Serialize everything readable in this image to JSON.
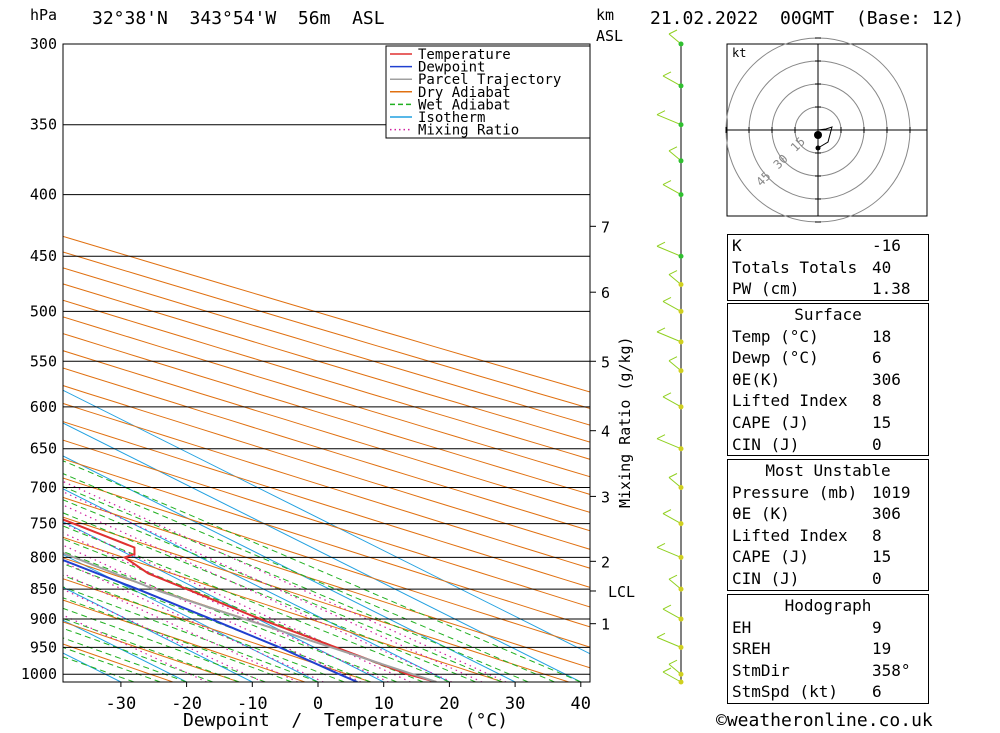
{
  "header": {
    "location": "32°38'N  343°54'W  56m  ASL",
    "datetime": "21.02.2022  00GMT  (Base: 12)"
  },
  "axis_labels": {
    "pressure_unit": "hPa",
    "height_unit": "km",
    "height_ref": "ASL",
    "x_label": "Dewpoint  /  Temperature  (°C)",
    "mixing_label": "Mixing Ratio (g/kg)",
    "kt": "kt",
    "lcl": "LCL"
  },
  "copyright": "©weatheronline.co.uk",
  "legend": [
    {
      "label": "Temperature",
      "color": "#e03030",
      "style": "solid"
    },
    {
      "label": "Dewpoint",
      "color": "#2040d0",
      "style": "solid"
    },
    {
      "label": "Parcel Trajectory",
      "color": "#a0a0a0",
      "style": "solid"
    },
    {
      "label": "Dry Adiabat",
      "color": "#e07010",
      "style": "solid"
    },
    {
      "label": "Wet Adiabat",
      "color": "#20b020",
      "style": "dashed"
    },
    {
      "label": "Isotherm",
      "color": "#20a0e0",
      "style": "solid"
    },
    {
      "label": "Mixing Ratio",
      "color": "#d020a0",
      "style": "dotted"
    }
  ],
  "chart_data": {
    "type": "line",
    "x_ticks": [
      -30,
      -20,
      -10,
      0,
      10,
      20,
      30,
      40
    ],
    "pressure_levels": [
      300,
      350,
      400,
      450,
      500,
      550,
      600,
      650,
      700,
      750,
      800,
      850,
      900,
      950,
      1000
    ],
    "height_ticks": [
      {
        "label": "7",
        "p": 425
      },
      {
        "label": "6",
        "p": 482
      },
      {
        "label": "5",
        "p": 550
      },
      {
        "label": "4",
        "p": 628
      },
      {
        "label": "3",
        "p": 712
      },
      {
        "label": "2",
        "p": 806
      },
      {
        "label": "1",
        "p": 908
      }
    ],
    "lcl_p": 853,
    "mixing_ratio_labels": [
      "1",
      "2",
      "3",
      "4",
      "6",
      "8",
      "10",
      "15",
      "20",
      "25"
    ],
    "series": [
      {
        "name": "Temperature",
        "points": [
          {
            "p": 1015,
            "t": 18
          },
          {
            "p": 1000,
            "t": 16
          },
          {
            "p": 950,
            "t": 13.3
          },
          {
            "p": 900,
            "t": 10.4
          },
          {
            "p": 850,
            "t": 8.3
          },
          {
            "p": 825,
            "t": 7.2
          },
          {
            "p": 800,
            "t": 8.5
          },
          {
            "p": 795,
            "t": 11
          },
          {
            "p": 785,
            "t": 13
          },
          {
            "p": 750,
            "t": 11
          },
          {
            "p": 700,
            "t": 7.9
          },
          {
            "p": 650,
            "t": 3.5
          },
          {
            "p": 600,
            "t": -1.1
          },
          {
            "p": 580,
            "t": -3.6
          },
          {
            "p": 550,
            "t": -4.7
          },
          {
            "p": 500,
            "t": -7.1
          },
          {
            "p": 450,
            "t": -12.5
          },
          {
            "p": 400,
            "t": -20
          },
          {
            "p": 385,
            "t": -22
          },
          {
            "p": 380,
            "t": -21
          },
          {
            "p": 300,
            "t": -34
          }
        ]
      },
      {
        "name": "Dewpoint",
        "points": [
          {
            "p": 1015,
            "t": 6
          },
          {
            "p": 1000,
            "t": 5.6
          },
          {
            "p": 950,
            "t": 4.7
          },
          {
            "p": 900,
            "t": 2.9
          },
          {
            "p": 850,
            "t": 0.8
          },
          {
            "p": 800,
            "t": -1.9
          },
          {
            "p": 798,
            "t": -29
          },
          {
            "p": 785,
            "t": -33
          },
          {
            "p": 700,
            "t": -46
          },
          {
            "p": 650,
            "t": -58
          },
          {
            "p": 600,
            "t": -49
          },
          {
            "p": 590,
            "t": -49
          },
          {
            "p": 588,
            "t": -29
          },
          {
            "p": 570,
            "t": -25
          },
          {
            "p": 550,
            "t": -27
          },
          {
            "p": 520,
            "t": -38
          },
          {
            "p": 500,
            "t": -31
          },
          {
            "p": 480,
            "t": -30
          },
          {
            "p": 470,
            "t": -35
          },
          {
            "p": 460,
            "t": -32
          },
          {
            "p": 445,
            "t": -36
          },
          {
            "p": 410,
            "t": -33
          },
          {
            "p": 400,
            "t": -34
          },
          {
            "p": 385,
            "t": -40
          },
          {
            "p": 380,
            "t": -58
          },
          {
            "p": 300,
            "t": -57
          }
        ]
      },
      {
        "name": "Parcel Trajectory",
        "points": [
          {
            "p": 1015,
            "t": 18
          },
          {
            "p": 950,
            "t": 12.6
          },
          {
            "p": 900,
            "t": 8
          },
          {
            "p": 853,
            "t": 3.5
          },
          {
            "p": 800,
            "t": 0.8
          },
          {
            "p": 700,
            "t": -5.3
          },
          {
            "p": 600,
            "t": -13
          },
          {
            "p": 500,
            "t": -22.7
          },
          {
            "p": 400,
            "t": -36.7
          },
          {
            "p": 300,
            "t": -54
          }
        ]
      }
    ]
  },
  "hodograph": {
    "rings": [
      "15",
      "30",
      "45"
    ]
  },
  "indices": {
    "rows": [
      {
        "k": "K",
        "v": "-16"
      },
      {
        "k": "Totals Totals",
        "v": "40"
      },
      {
        "k": "PW (cm)",
        "v": "1.38"
      }
    ]
  },
  "surface": {
    "title": "Surface",
    "rows": [
      {
        "k": "Temp (°C)",
        "v": "18"
      },
      {
        "k": "Dewp (°C)",
        "v": "6"
      },
      {
        "k": "θE(K)",
        "v": "306"
      },
      {
        "k": "Lifted Index",
        "v": "8"
      },
      {
        "k": "CAPE (J)",
        "v": "15"
      },
      {
        "k": "CIN (J)",
        "v": "0"
      }
    ]
  },
  "most_unstable": {
    "title": "Most Unstable",
    "rows": [
      {
        "k": "Pressure (mb)",
        "v": "1019"
      },
      {
        "k": "θE (K)",
        "v": "306"
      },
      {
        "k": "Lifted Index",
        "v": "8"
      },
      {
        "k": "CAPE (J)",
        "v": "15"
      },
      {
        "k": "CIN (J)",
        "v": "0"
      }
    ]
  },
  "hodograph_table": {
    "title": "Hodograph",
    "rows": [
      {
        "k": "EH",
        "v": "9"
      },
      {
        "k": "SREH",
        "v": "19"
      },
      {
        "k": "StmDir",
        "v": "358°"
      },
      {
        "k": "StmSpd (kt)",
        "v": "6"
      }
    ]
  }
}
